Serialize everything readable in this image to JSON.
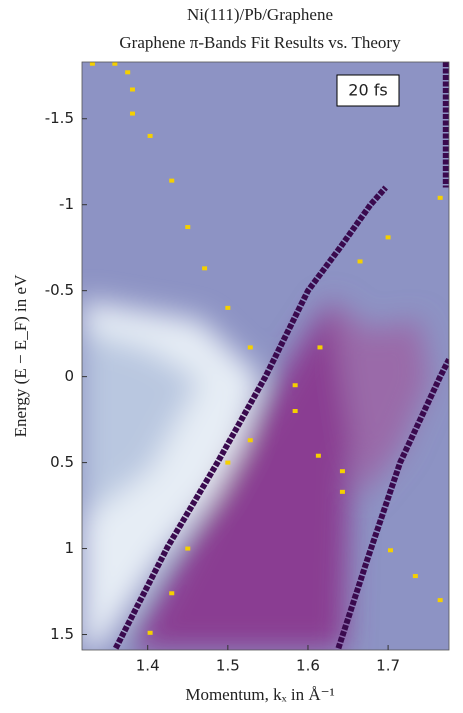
{
  "chart_data": {
    "type": "line",
    "title": "Ni(111)/Pb/Graphene",
    "subtitle": "Graphene π-Bands Fit Results vs. Theory",
    "x_label": "Momentum, kₓ in Å⁻¹",
    "y_label": "Energy (E − E_F) in eV",
    "annotation": "20 fs",
    "xlim": [
      1.318,
      1.776
    ],
    "xticks": [
      1.4,
      1.5,
      1.6,
      1.7
    ],
    "ylim": [
      -1.83,
      1.59
    ],
    "y_inverted": true,
    "yticks": [
      -1.5,
      -1,
      -0.5,
      0,
      0.5,
      1,
      1.5
    ],
    "series": [
      {
        "color": "#3a0a4e",
        "mode": "line",
        "x": [
          1.36,
          1.425,
          1.487,
          1.547,
          1.6,
          1.64,
          1.678,
          1.697
        ],
        "values": [
          1.58,
          0.99,
          0.5,
          0,
          -0.5,
          -0.75,
          -1,
          -1.1
        ]
      },
      {
        "color": "#3a0a4e",
        "mode": "line",
        "x": [
          1.638,
          1.675,
          1.715,
          1.745,
          1.765,
          1.776
        ],
        "values": [
          1.58,
          1.05,
          0.5,
          0.2,
          0,
          -0.1
        ]
      },
      {
        "color": "#3a0a4e",
        "mode": "line",
        "x": [
          1.772,
          1.772
        ],
        "values": [
          -1.83,
          -1.1
        ]
      },
      {
        "color": "#f5d000",
        "mode": "markers",
        "x": [
          1.331,
          1.359,
          1.375,
          1.381,
          1.381,
          1.403,
          1.43,
          1.45,
          1.471,
          1.5,
          1.528,
          1.5,
          1.528,
          1.584,
          1.613,
          1.643,
          1.643,
          1.703,
          1.734,
          1.765,
          1.45,
          1.43,
          1.403,
          1.665,
          1.7,
          1.765,
          1.615,
          1.584
        ],
        "values": [
          -1.82,
          -1.82,
          -1.77,
          -1.67,
          -1.53,
          -1.4,
          -1.14,
          -0.87,
          -0.63,
          -0.4,
          -0.17,
          0.5,
          0.37,
          0.2,
          0.46,
          0.55,
          0.67,
          1.01,
          1.16,
          1.3,
          1.0,
          1.26,
          1.49,
          -0.67,
          -0.81,
          -1.04,
          -0.17,
          0.05
        ]
      }
    ]
  }
}
